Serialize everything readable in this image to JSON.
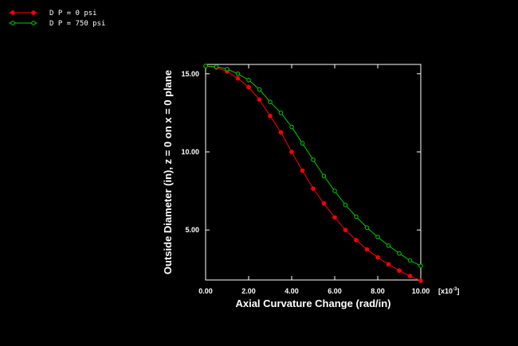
{
  "chart_data": {
    "type": "line",
    "title": "",
    "xlabel": "Axial Curvature Change (rad/in)",
    "ylabel": "Outside Diameter (in), z = 0 on x = 0 plane",
    "x_multiplier_label": "[x10",
    "x_multiplier_exp": "-3",
    "x_multiplier_close": "]",
    "xlim": [
      0,
      10
    ],
    "ylim": [
      1.8,
      15.6
    ],
    "x_ticks": [
      0,
      2,
      4,
      6,
      8,
      10
    ],
    "x_tick_labels": [
      "0.00",
      "2.00",
      "4.00",
      "6.00",
      "8.00",
      "10.00"
    ],
    "y_ticks": [
      5,
      10,
      15
    ],
    "y_tick_labels": [
      "5.00",
      "10.00",
      "15.00"
    ],
    "legend_position": "top-left",
    "grid": false,
    "series": [
      {
        "name": "D P = 0 psi",
        "color": "#ff0000",
        "marker": "filled-circle",
        "x": [
          0,
          0.5,
          1.0,
          1.5,
          2.0,
          2.5,
          3.0,
          3.5,
          4.0,
          4.5,
          5.0,
          5.5,
          6.0,
          6.5,
          7.0,
          7.5,
          8.0,
          8.5,
          9.0,
          9.5,
          10.0
        ],
        "y": [
          15.5,
          15.4,
          15.15,
          14.7,
          14.15,
          13.35,
          12.3,
          11.25,
          10.0,
          8.8,
          7.65,
          6.7,
          5.8,
          5.0,
          4.35,
          3.75,
          3.25,
          2.8,
          2.4,
          2.05,
          1.75
        ]
      },
      {
        "name": "D P = 750 psi",
        "color": "#00cc00",
        "marker": "open-circle",
        "x": [
          0,
          0.5,
          1.0,
          1.5,
          2.0,
          2.5,
          3.0,
          3.5,
          4.0,
          4.5,
          5.0,
          5.5,
          6.0,
          6.5,
          7.0,
          7.5,
          8.0,
          8.5,
          9.0,
          9.5,
          10.0
        ],
        "y": [
          15.5,
          15.45,
          15.3,
          15.0,
          14.6,
          14.0,
          13.2,
          12.5,
          11.6,
          10.55,
          9.5,
          8.45,
          7.5,
          6.6,
          5.85,
          5.15,
          4.55,
          4.0,
          3.5,
          3.05,
          2.7
        ]
      }
    ]
  }
}
